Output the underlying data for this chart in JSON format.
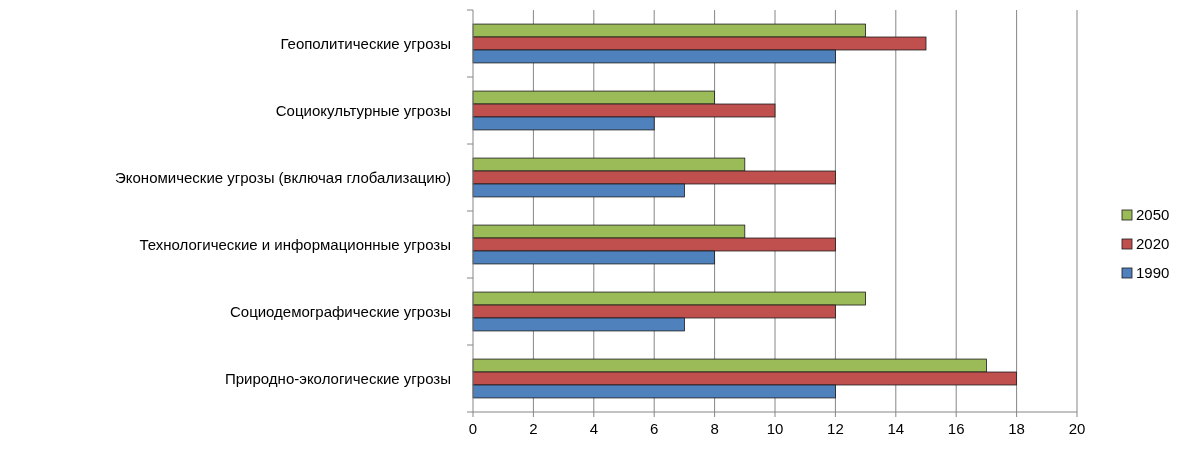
{
  "chart_data": {
    "type": "bar",
    "orientation": "horizontal",
    "categories": [
      "Геополитические угрозы",
      "Социокультурные угрозы",
      "Экономические угрозы (включая глобализацию)",
      "Технологические и информационные угрозы",
      "Социодемографические угрозы",
      "Природно-экологические угрозы"
    ],
    "series": [
      {
        "name": "2050",
        "color": "#9bbb59",
        "values": [
          13,
          8,
          9,
          9,
          13,
          17
        ]
      },
      {
        "name": "2020",
        "color": "#c0504d",
        "values": [
          15,
          10,
          12,
          12,
          12,
          18
        ]
      },
      {
        "name": "1990",
        "color": "#4f81bd",
        "values": [
          12,
          6,
          7,
          8,
          7,
          12
        ]
      }
    ],
    "xlim": [
      0,
      20
    ],
    "xticks": [
      0,
      2,
      4,
      6,
      8,
      10,
      12,
      14,
      16,
      18,
      20
    ],
    "grid": "x",
    "legend": "right"
  }
}
